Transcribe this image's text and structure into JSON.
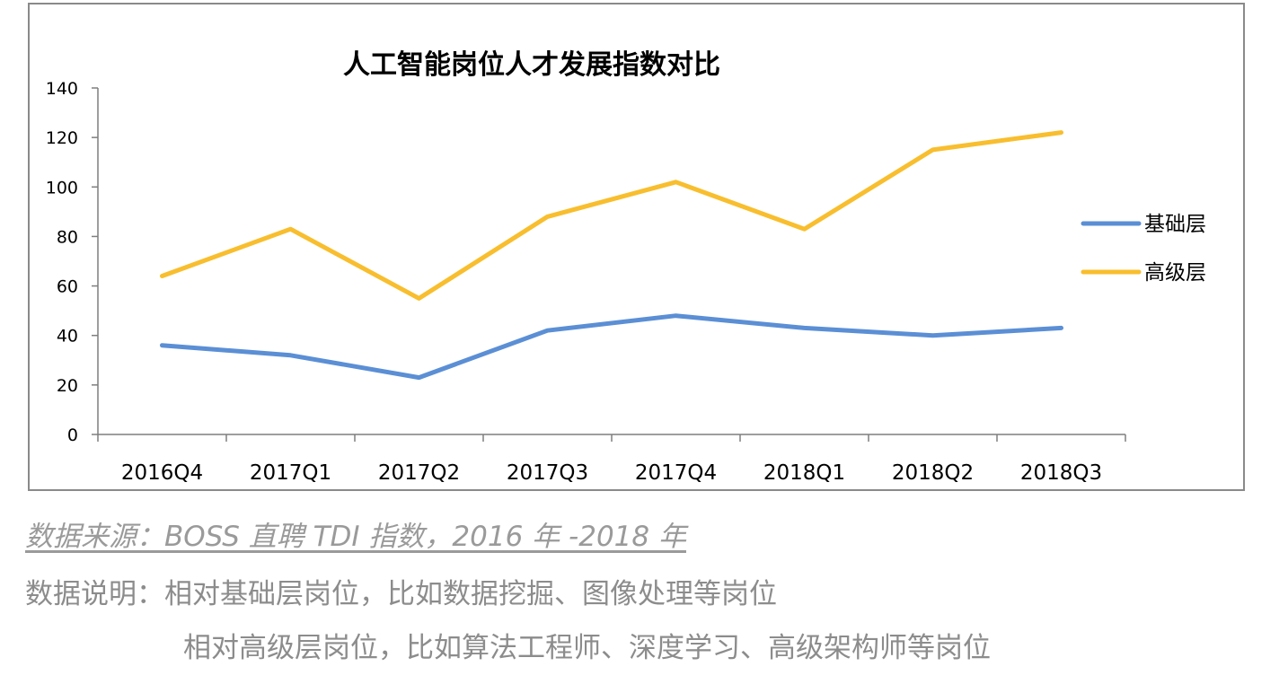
{
  "chart_data": {
    "type": "line",
    "title": "人工智能岗位人才发展指数对比",
    "categories": [
      "2016Q4",
      "2017Q1",
      "2017Q2",
      "2017Q3",
      "2017Q4",
      "2018Q1",
      "2018Q2",
      "2018Q3"
    ],
    "series": [
      {
        "name": "基础层",
        "color": "#5b8fd5",
        "values": [
          36,
          32,
          23,
          42,
          48,
          43,
          40,
          43
        ]
      },
      {
        "name": "高级层",
        "color": "#f8be2e",
        "values": [
          64,
          83,
          55,
          88,
          102,
          83,
          115,
          122
        ]
      }
    ],
    "ylim": [
      0,
      140
    ],
    "yticks": [
      0,
      20,
      40,
      60,
      80,
      100,
      120,
      140
    ],
    "xlabel": "",
    "ylabel": "",
    "legend_position": "right",
    "grid": false
  },
  "footer": {
    "source": "数据来源：BOSS 直聘 TDI 指数，2016 年 -2018 年",
    "note_label": "数据说明：",
    "note_line1": "相对基础层岗位，比如数据挖掘、图像处理等岗位",
    "note_line2": "相对高级层岗位，比如算法工程师、深度学习、高级架构师等岗位"
  }
}
